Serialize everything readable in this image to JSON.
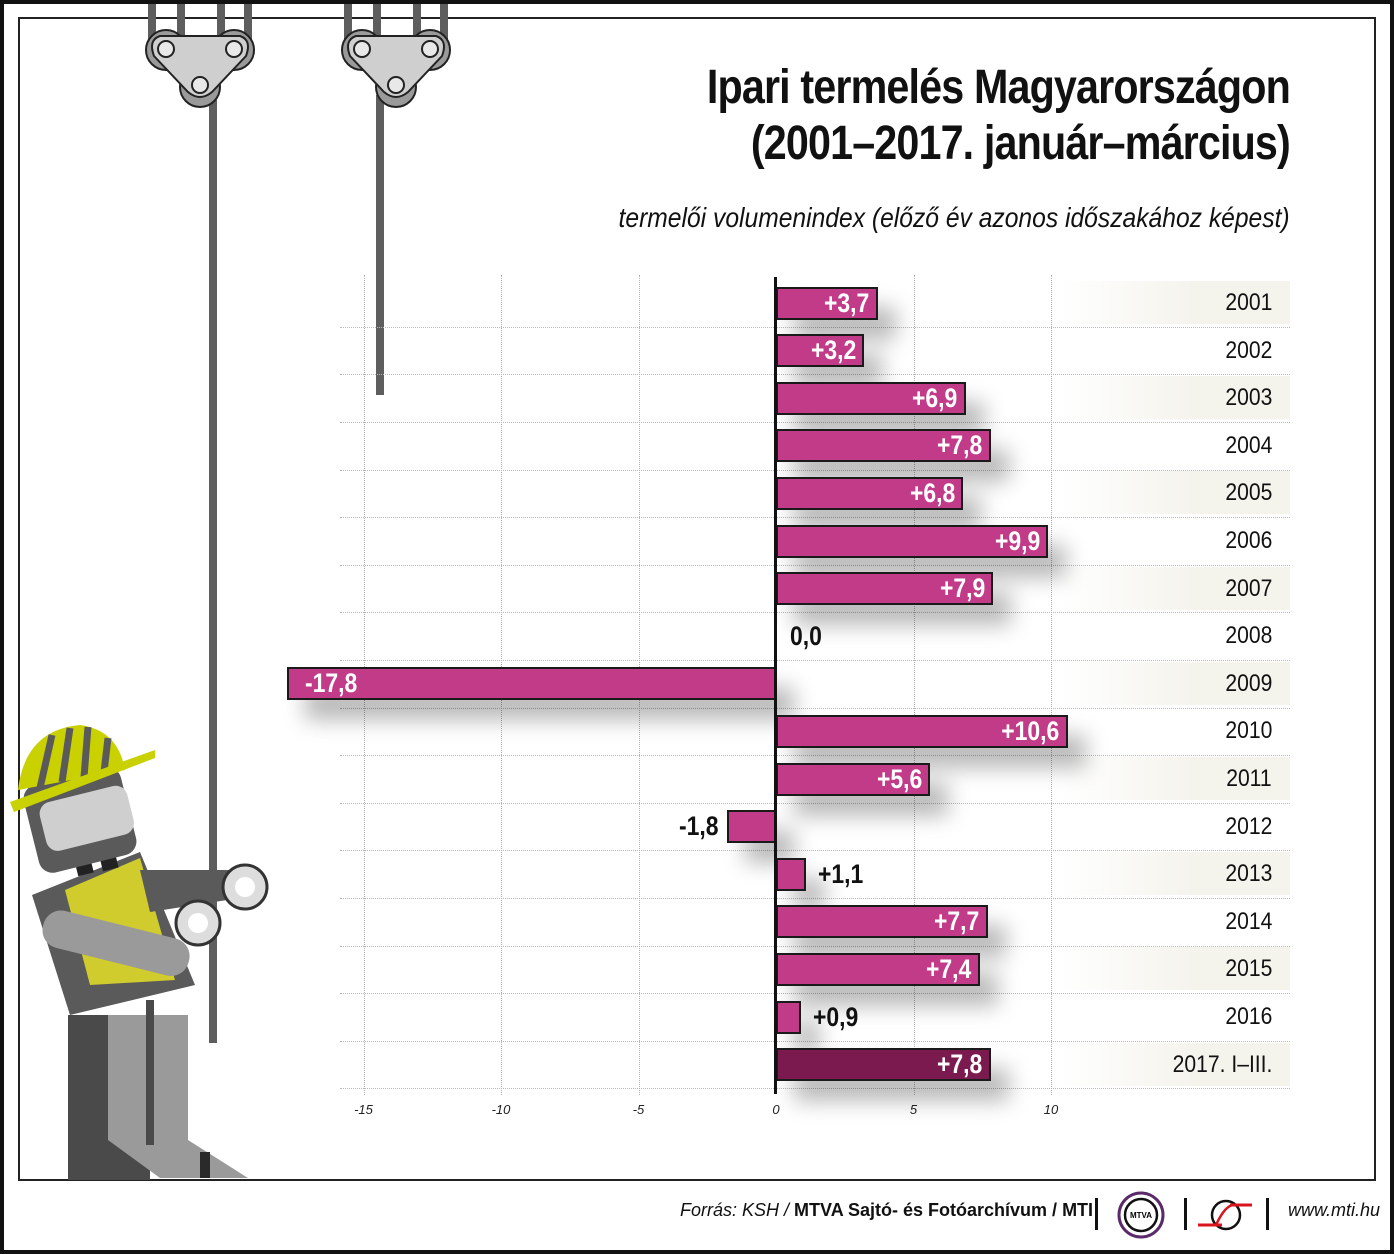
{
  "header": {
    "title_line1": "Ipari termelés Magyarországon",
    "title_line2": "(2001–2017. január–március)",
    "subtitle": "termelői volumenindex (előző év azonos időszakához képest)"
  },
  "chart_data": {
    "type": "bar",
    "orientation": "horizontal",
    "title": "Ipari termelés Magyarországon (2001–2017. január–március)",
    "subtitle": "termelői volumenindex (előző év azonos időszakához képest)",
    "xlabel": "",
    "ylabel": "",
    "xlim": [
      -18.5,
      10.8
    ],
    "x_ticks": [
      "-15",
      "-10",
      "-5",
      "0",
      "5",
      "10"
    ],
    "grid": true,
    "legend": "none",
    "categories": [
      "2001",
      "2002",
      "2003",
      "2004",
      "2005",
      "2006",
      "2007",
      "2008",
      "2009",
      "2010",
      "2011",
      "2012",
      "2013",
      "2014",
      "2015",
      "2016",
      "2017. I–III."
    ],
    "values": [
      3.7,
      3.2,
      6.9,
      7.8,
      6.8,
      9.9,
      7.9,
      0.0,
      -17.8,
      10.6,
      5.6,
      -1.8,
      1.1,
      7.7,
      7.4,
      0.9,
      7.8
    ],
    "labels": [
      "+3,7",
      "+3,2",
      "+6,9",
      "+7,8",
      "+6,8",
      "+9,9",
      "+7,9",
      "0,0",
      "-17,8",
      "+10,6",
      "+5,6",
      "-1,8",
      "+1,1",
      "+7,7",
      "+7,4",
      "+0,9",
      "+7,8"
    ],
    "colors": {
      "bar": "#c23b88",
      "highlight": "#7a1a4e",
      "outline": "#1a1a1a"
    }
  },
  "footer": {
    "source_prefix": "Forrás: KSH / ",
    "source_bold": "MTVA Sajtó- és Fotóarchívum / MTI",
    "mtva_logo_text": "MTVA",
    "website": "www.mti.hu"
  }
}
